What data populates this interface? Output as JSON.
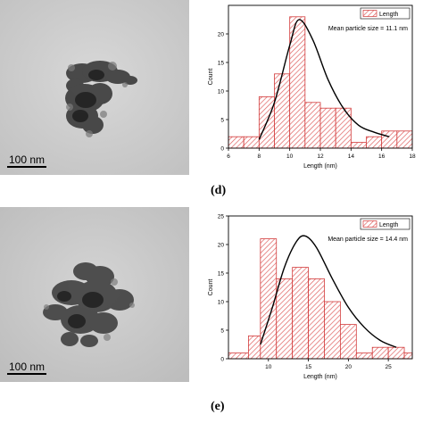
{
  "figure": {
    "panels": [
      {
        "label": "",
        "scale_bar": "100 nm"
      },
      {
        "label": "(d)"
      },
      {
        "label": "",
        "scale_bar": "100 nm"
      },
      {
        "label": "(e)"
      }
    ]
  },
  "colors": {
    "bar_stroke": "#d23b3b",
    "hatch": "#e06060",
    "curve": "#000000",
    "tem_background": "#cfcfcf"
  },
  "chart_data": [
    {
      "type": "bar",
      "title": "",
      "xlabel": "Length (nm)",
      "ylabel": "Count",
      "xlim": [
        6,
        18
      ],
      "ylim": [
        0,
        25
      ],
      "xticks": [
        6,
        8,
        10,
        12,
        14,
        16,
        18
      ],
      "yticks": [
        0,
        5,
        10,
        15,
        20
      ],
      "bin_edges": [
        6,
        7,
        8,
        9,
        10,
        11,
        12,
        13,
        14,
        15,
        16,
        17,
        18
      ],
      "values": [
        2,
        2,
        9,
        13,
        23,
        8,
        7,
        7,
        1,
        2,
        3,
        3
      ],
      "legend": {
        "entry": "Length",
        "placement": "top-right"
      },
      "annotation": "Mean particle size = 11.1 nm",
      "fit_curve": {
        "x": [
          8,
          9,
          10,
          10.6,
          11.5,
          12.5,
          13.5,
          14.5,
          15.5,
          16.5
        ],
        "y": [
          1.5,
          8,
          18,
          22.5,
          19,
          12,
          7,
          4,
          2.8,
          2
        ]
      }
    },
    {
      "type": "bar",
      "title": "",
      "xlabel": "Length (nm)",
      "ylabel": "Count",
      "xlim": [
        5,
        28
      ],
      "ylim": [
        0,
        25
      ],
      "xticks": [
        10,
        15,
        20,
        25
      ],
      "yticks": [
        0,
        5,
        10,
        15,
        20,
        25
      ],
      "bin_edges": [
        5,
        7.5,
        9,
        11,
        13,
        15,
        17,
        19,
        21,
        23,
        25,
        27,
        28
      ],
      "values": [
        1,
        4,
        21,
        14,
        16,
        14,
        10,
        6,
        1,
        2,
        2,
        1
      ],
      "legend": {
        "entry": "Length",
        "placement": "top-right"
      },
      "annotation": "Mean particle size = 14.4 nm",
      "fit_curve": {
        "x": [
          9,
          10.5,
          12,
          13.5,
          14.6,
          16,
          18,
          20,
          22,
          24,
          26
        ],
        "y": [
          2.5,
          9,
          16,
          20.5,
          21.5,
          19.5,
          14,
          9,
          5.5,
          3.2,
          2
        ]
      }
    }
  ]
}
